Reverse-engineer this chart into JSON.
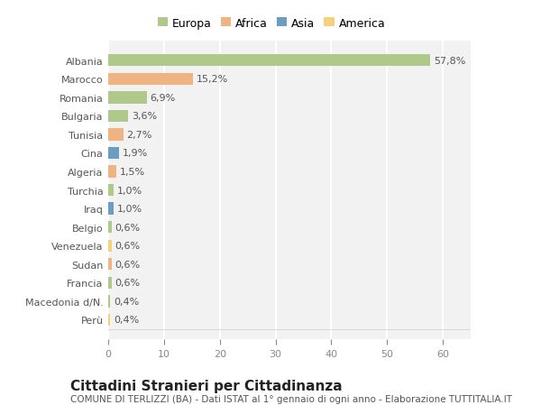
{
  "categories": [
    "Albania",
    "Marocco",
    "Romania",
    "Bulgaria",
    "Tunisia",
    "Cina",
    "Algeria",
    "Turchia",
    "Iraq",
    "Belgio",
    "Venezuela",
    "Sudan",
    "Francia",
    "Macedonia d/N.",
    "Perù"
  ],
  "values": [
    57.8,
    15.2,
    6.9,
    3.6,
    2.7,
    1.9,
    1.5,
    1.0,
    1.0,
    0.6,
    0.6,
    0.6,
    0.6,
    0.4,
    0.4
  ],
  "labels": [
    "57,8%",
    "15,2%",
    "6,9%",
    "3,6%",
    "2,7%",
    "1,9%",
    "1,5%",
    "1,0%",
    "1,0%",
    "0,6%",
    "0,6%",
    "0,6%",
    "0,6%",
    "0,4%",
    "0,4%"
  ],
  "continents": [
    "Europa",
    "Africa",
    "Europa",
    "Europa",
    "Africa",
    "Asia",
    "Africa",
    "Europa",
    "Asia",
    "Europa",
    "America",
    "Africa",
    "Europa",
    "Europa",
    "America"
  ],
  "continent_colors": {
    "Europa": "#aec98a",
    "Africa": "#f0b482",
    "Asia": "#6b9dc2",
    "America": "#f5d17a"
  },
  "background_color": "#f2f2f2",
  "title": "Cittadini Stranieri per Cittadinanza",
  "subtitle": "COMUNE DI TERLIZZI (BA) - Dati ISTAT al 1° gennaio di ogni anno - Elaborazione TUTTITALIA.IT",
  "xlim": [
    0,
    65
  ],
  "xticks": [
    0,
    10,
    20,
    30,
    40,
    50,
    60
  ],
  "bar_height": 0.65,
  "figure_bg": "#ffffff",
  "grid_color": "#ffffff",
  "label_fontsize": 8,
  "tick_fontsize": 8,
  "title_fontsize": 11,
  "subtitle_fontsize": 7.5,
  "legend_order": [
    "Europa",
    "Africa",
    "Asia",
    "America"
  ]
}
